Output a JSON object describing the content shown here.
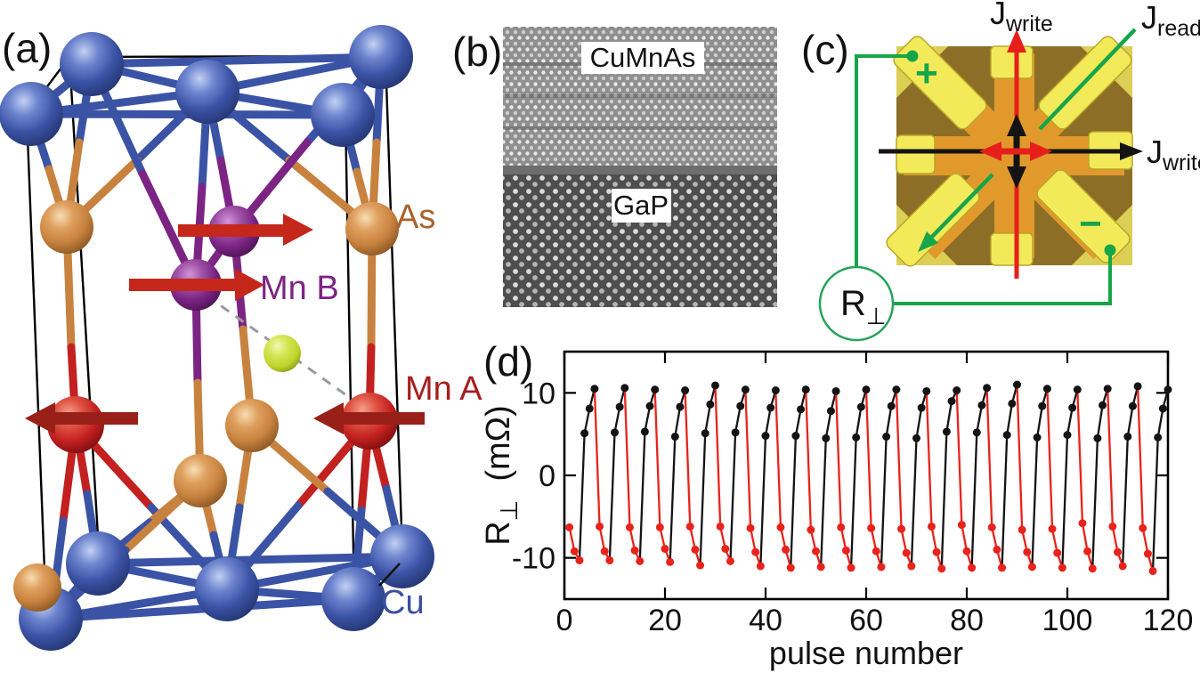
{
  "panels": {
    "a": {
      "label": "(a)",
      "atoms": {
        "as": "As",
        "mn_b": "Mn B",
        "mn_a": "Mn A",
        "cu": "Cu"
      },
      "atom_colors": {
        "cu": "#3b53a5",
        "as": "#c8823f",
        "mn_b": "#7c2484",
        "mn_a": "#c32020",
        "interstitial": "#bfd32b"
      },
      "spin_arrow_colors": {
        "mn_b_right": "#c5271b",
        "mn_a_left": "#992018"
      }
    },
    "b": {
      "label": "(b)",
      "top_material": "CuMnAs",
      "bottom_material": "GaP"
    },
    "c": {
      "label": "(c)",
      "j_write": {
        "base": "J",
        "sub": "write"
      },
      "j_read": {
        "base": "J",
        "sub": "read"
      },
      "meter": {
        "base": "R",
        "sub": "⊥"
      },
      "plus": "+",
      "minus": "−",
      "colors": {
        "wire_green": "#17a54a",
        "arrow_red": "#e71f1b",
        "pad_yellow": "#f3ea5a",
        "device_bg": "#8d6e26",
        "center_orange": "#e2992b"
      }
    },
    "d": {
      "label": "(d)"
    }
  },
  "chart_data": {
    "type": "line",
    "title": "",
    "xlabel": "pulse number",
    "ylabel": "R⊥ (mΩ)",
    "ylabel_base": "R",
    "ylabel_sub": "⊥",
    "ylabel_unit": "(mΩ)",
    "xlim": [
      0,
      120
    ],
    "ylim": [
      -15,
      15
    ],
    "xticks": [
      0,
      20,
      40,
      60,
      80,
      100,
      120
    ],
    "yticks": [
      -10,
      0,
      10
    ],
    "grid": false,
    "legend": null,
    "marker": "filled-circle",
    "x_start": 1,
    "colors": {
      "red": "#e8231c",
      "black": "#141414"
    },
    "pattern": "120 pulses in 20 six-pulse cycles: pulses 1-3 red (negative branch stepping down ~ -6.3 to -11), pulses 4-6 black (positive branch stepping up ~ +4.9 to +10.5); each connecting segment takes the color of its destination point",
    "values": [
      -6.3,
      -9.2,
      -10.3,
      5.1,
      8.1,
      10.5,
      -6.2,
      -9.2,
      -10.3,
      5.2,
      8.3,
      10.6,
      -6.3,
      -9.1,
      -10.4,
      5.3,
      8.4,
      10.4,
      -6.3,
      -8.9,
      -10.5,
      4.7,
      8.3,
      10.3,
      -6.2,
      -9.0,
      -10.9,
      5.1,
      8.6,
      10.9,
      -6.2,
      -8.9,
      -10.4,
      5.2,
      8.4,
      10.4,
      -6.4,
      -9.3,
      -11.0,
      4.8,
      8.2,
      10.3,
      -6.3,
      -9.0,
      -11.2,
      4.8,
      8.0,
      10.4,
      -6.6,
      -9.2,
      -11.1,
      4.5,
      7.8,
      10.2,
      -6.3,
      -9.1,
      -11.2,
      4.6,
      8.3,
      10.4,
      -6.4,
      -9.2,
      -11.1,
      4.7,
      8.4,
      10.4,
      -6.5,
      -9.4,
      -11.0,
      4.5,
      8.2,
      10.2,
      -6.2,
      -9.3,
      -11.3,
      5.3,
      9.0,
      10.3,
      -6.0,
      -9.2,
      -11.2,
      5.2,
      8.5,
      10.6,
      -6.3,
      -9.0,
      -11.2,
      4.9,
      8.7,
      11.0,
      -6.6,
      -9.3,
      -11.1,
      4.6,
      8.4,
      10.5,
      -6.5,
      -9.4,
      -11.2,
      4.9,
      8.2,
      10.4,
      -5.8,
      -9.2,
      -11.3,
      4.5,
      8.5,
      10.5,
      -6.2,
      -9.3,
      -11.0,
      4.7,
      8.4,
      10.8,
      -6.4,
      -9.5,
      -11.6,
      4.6,
      8.1,
      10.4
    ]
  }
}
